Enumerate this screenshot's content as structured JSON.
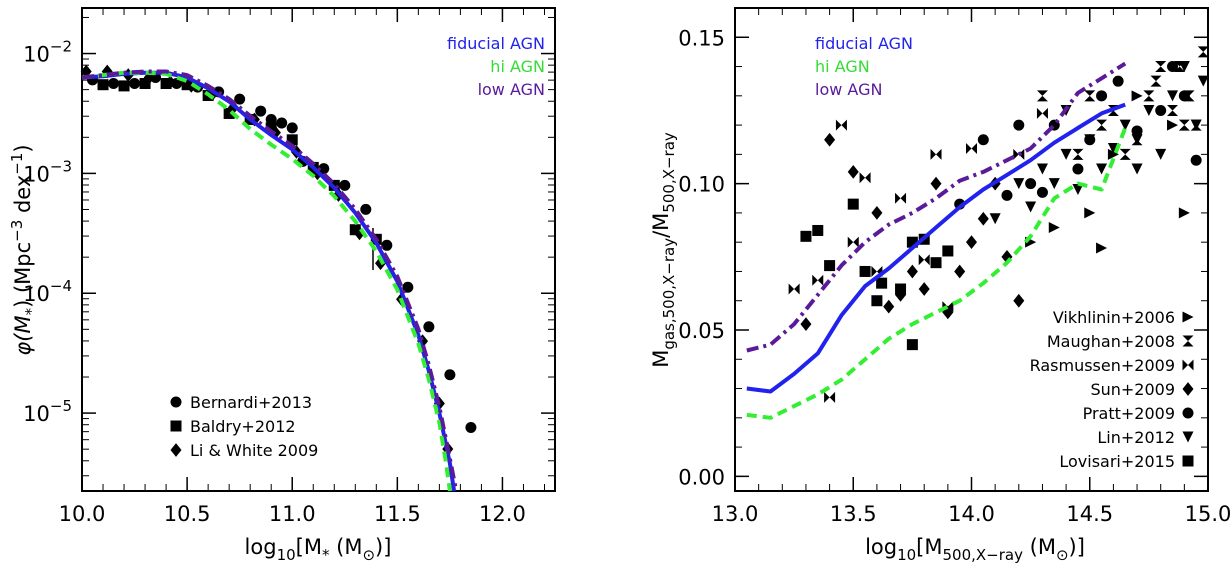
{
  "chart_data": [
    {
      "type": "scatter",
      "id": "left",
      "xlabel": {
        "pre": "log",
        "sub": "10",
        "mid": "[M",
        "sub2": "*",
        "post": " (M",
        "sym": "⊙",
        "end": ")]"
      },
      "ylabel": {
        "pre": "φ(M",
        "sub": "*",
        "mid": ")  (Mpc",
        "sup": "−3",
        "mid2": " dex",
        "sup2": "−1",
        "end": ")"
      },
      "xlim": [
        10.0,
        12.25
      ],
      "ylim_log10": [
        -5.65,
        -1.62
      ],
      "yscale": "log",
      "xticks": [
        "10.0",
        "10.5",
        "11.0",
        "11.5",
        "12.0"
      ],
      "xtick_values": [
        10.0,
        10.5,
        11.0,
        11.5,
        12.0
      ],
      "yticks": [
        {
          "exp": -2,
          "base": "10",
          "sup": "−2"
        },
        {
          "exp": -3,
          "base": "10",
          "sup": "−3"
        },
        {
          "exp": -4,
          "base": "10",
          "sup": "−4"
        },
        {
          "exp": -5,
          "base": "10",
          "sup": "−5"
        }
      ],
      "models": [
        {
          "name": "fiducial AGN",
          "color": "#2222ee",
          "style": "solid",
          "x": [
            10.0,
            10.1,
            10.2,
            10.3,
            10.4,
            10.5,
            10.6,
            10.7,
            10.8,
            10.9,
            11.0,
            11.1,
            11.2,
            11.3,
            11.4,
            11.5,
            11.6,
            11.65,
            11.7,
            11.75,
            11.77
          ],
          "logy": [
            -2.2,
            -2.19,
            -2.17,
            -2.16,
            -2.16,
            -2.2,
            -2.29,
            -2.4,
            -2.55,
            -2.68,
            -2.8,
            -2.95,
            -3.12,
            -3.33,
            -3.58,
            -3.9,
            -4.35,
            -4.65,
            -5.0,
            -5.42,
            -5.65
          ]
        },
        {
          "name": "hi AGN",
          "color": "#33ee33",
          "style": "dashed",
          "x": [
            10.0,
            10.1,
            10.2,
            10.3,
            10.4,
            10.5,
            10.6,
            10.7,
            10.8,
            10.9,
            11.0,
            11.1,
            11.2,
            11.3,
            11.4,
            11.5,
            11.6,
            11.65,
            11.7,
            11.73,
            11.75
          ],
          "logy": [
            -2.2,
            -2.18,
            -2.16,
            -2.16,
            -2.17,
            -2.23,
            -2.34,
            -2.47,
            -2.63,
            -2.76,
            -2.88,
            -3.02,
            -3.19,
            -3.4,
            -3.65,
            -3.97,
            -4.42,
            -4.72,
            -5.08,
            -5.4,
            -5.65
          ]
        },
        {
          "name": "low AGN",
          "color": "#5a1a9a",
          "style": "dashdot",
          "x": [
            10.0,
            10.1,
            10.2,
            10.3,
            10.4,
            10.5,
            10.6,
            10.7,
            10.8,
            10.9,
            11.0,
            11.1,
            11.2,
            11.3,
            11.4,
            11.5,
            11.6,
            11.65,
            11.7,
            11.75,
            11.78
          ],
          "logy": [
            -2.2,
            -2.18,
            -2.16,
            -2.15,
            -2.15,
            -2.18,
            -2.27,
            -2.38,
            -2.52,
            -2.65,
            -2.77,
            -2.92,
            -3.09,
            -3.3,
            -3.55,
            -3.86,
            -4.3,
            -4.6,
            -4.95,
            -5.38,
            -5.65
          ]
        }
      ],
      "observations": [
        {
          "name": "Bernardi+2013",
          "marker": "circle",
          "x": [
            10.05,
            10.15,
            10.25,
            10.35,
            10.45,
            10.55,
            10.65,
            10.75,
            10.85,
            10.9,
            10.95,
            11.0,
            11.05,
            11.15,
            11.25,
            11.35,
            11.45,
            11.55,
            11.65,
            11.75,
            11.85
          ],
          "logy": [
            -2.22,
            -2.25,
            -2.25,
            -2.2,
            -2.25,
            -2.28,
            -2.32,
            -2.38,
            -2.48,
            -2.55,
            -2.58,
            -2.62,
            -2.9,
            -2.96,
            -3.1,
            -3.3,
            -3.6,
            -3.95,
            -4.28,
            -4.68,
            -5.12
          ]
        },
        {
          "name": "Baldry+2012",
          "marker": "square",
          "x": [
            10.1,
            10.2,
            10.3,
            10.4,
            10.5,
            10.6,
            10.7,
            10.8,
            10.9,
            11.0,
            11.1,
            11.2,
            11.3,
            11.4
          ],
          "logy": [
            -2.26,
            -2.27,
            -2.25,
            -2.25,
            -2.26,
            -2.35,
            -2.5,
            -2.55,
            -2.62,
            -2.72,
            -2.95,
            -3.1,
            -3.47,
            -3.55
          ]
        },
        {
          "name": "Li & White 2009",
          "marker": "diamond",
          "x": [
            10.02,
            10.12,
            10.22,
            10.32,
            10.42,
            10.52,
            10.62,
            10.72,
            10.82,
            10.92,
            11.02,
            11.12,
            11.22,
            11.32,
            11.42,
            11.52,
            11.62,
            11.7,
            11.74
          ],
          "logy": [
            -2.15,
            -2.15,
            -2.18,
            -2.2,
            -2.24,
            -2.27,
            -2.34,
            -2.45,
            -2.55,
            -2.66,
            -2.82,
            -3.0,
            -3.18,
            -3.5,
            -3.75,
            -4.05,
            -4.4,
            -4.92,
            -5.3
          ]
        }
      ],
      "legend_position": "bottom-left",
      "model_legend_position": "top-right"
    },
    {
      "type": "scatter",
      "id": "right",
      "xlabel": {
        "pre": "log",
        "sub": "10",
        "mid": "[M",
        "sub2": "500,X−ray",
        "post": " (M",
        "sym": "⊙",
        "end": ")]"
      },
      "ylabel": {
        "pre": "M",
        "sub": "gas,500,X−ray",
        "mid": "/M",
        "sub2": "500,X−ray"
      },
      "xlim": [
        13.0,
        15.0
      ],
      "ylim": [
        -0.005,
        0.16
      ],
      "xticks": [
        "13.0",
        "13.5",
        "14.0",
        "14.5",
        "15.0"
      ],
      "xtick_values": [
        13.0,
        13.5,
        14.0,
        14.5,
        15.0
      ],
      "yticks": [
        "0.00",
        "0.05",
        "0.10",
        "0.15"
      ],
      "ytick_values": [
        0.0,
        0.05,
        0.1,
        0.15
      ],
      "models": [
        {
          "name": "fiducial AGN",
          "color": "#2222ee",
          "style": "solid",
          "x": [
            13.05,
            13.15,
            13.25,
            13.35,
            13.45,
            13.55,
            13.65,
            13.75,
            13.85,
            13.95,
            14.05,
            14.15,
            14.25,
            14.35,
            14.45,
            14.55,
            14.65
          ],
          "y": [
            0.03,
            0.029,
            0.035,
            0.042,
            0.055,
            0.065,
            0.071,
            0.078,
            0.085,
            0.092,
            0.098,
            0.103,
            0.108,
            0.114,
            0.119,
            0.124,
            0.127
          ]
        },
        {
          "name": "hi AGN",
          "color": "#33ee33",
          "style": "dashed",
          "x": [
            13.05,
            13.15,
            13.25,
            13.35,
            13.45,
            13.55,
            13.65,
            13.75,
            13.85,
            13.95,
            14.05,
            14.15,
            14.25,
            14.35,
            14.45,
            14.55,
            14.65
          ],
          "y": [
            0.021,
            0.02,
            0.024,
            0.028,
            0.033,
            0.04,
            0.047,
            0.052,
            0.056,
            0.06,
            0.066,
            0.073,
            0.082,
            0.095,
            0.1,
            0.098,
            0.119
          ]
        },
        {
          "name": "low AGN",
          "color": "#5a1a9a",
          "style": "dashdot",
          "x": [
            13.05,
            13.15,
            13.25,
            13.35,
            13.45,
            13.55,
            13.65,
            13.75,
            13.85,
            13.95,
            14.05,
            14.15,
            14.25,
            14.35,
            14.45,
            14.55,
            14.65
          ],
          "y": [
            0.043,
            0.045,
            0.052,
            0.062,
            0.072,
            0.08,
            0.086,
            0.09,
            0.095,
            0.101,
            0.104,
            0.108,
            0.112,
            0.12,
            0.131,
            0.136,
            0.141
          ]
        }
      ],
      "observations": [
        {
          "name": "Vikhlinin+2006",
          "marker": "triangle-right",
          "x": [
            14.25,
            14.35,
            14.5,
            14.55,
            14.6,
            14.7,
            14.85,
            14.9
          ],
          "y": [
            0.08,
            0.085,
            0.09,
            0.078,
            0.11,
            0.13,
            0.12,
            0.09
          ]
        },
        {
          "name": "Maughan+2008",
          "marker": "hourglass",
          "x": [
            14.3,
            14.45,
            14.55,
            14.6,
            14.7,
            14.75,
            14.8,
            14.85,
            14.88,
            14.92,
            14.95,
            14.98,
            14.5,
            14.65,
            14.78,
            14.9
          ],
          "y": [
            0.13,
            0.11,
            0.12,
            0.125,
            0.115,
            0.13,
            0.14,
            0.125,
            0.14,
            0.13,
            0.12,
            0.145,
            0.13,
            0.11,
            0.135,
            0.12
          ]
        },
        {
          "name": "Rasmussen+2009",
          "marker": "bowtie",
          "x": [
            13.25,
            13.35,
            13.45,
            13.5,
            13.55,
            13.6,
            13.7,
            13.8,
            13.85,
            13.9,
            14.0,
            14.2,
            14.3,
            13.4
          ],
          "y": [
            0.064,
            0.067,
            0.12,
            0.08,
            0.102,
            0.07,
            0.095,
            0.074,
            0.11,
            0.058,
            0.112,
            0.11,
            0.124,
            0.027
          ]
        },
        {
          "name": "Sun+2009",
          "marker": "diamond",
          "x": [
            13.3,
            13.4,
            13.5,
            13.6,
            13.7,
            13.75,
            13.85,
            13.9,
            13.95,
            14.0,
            14.05,
            14.1,
            14.15,
            14.2,
            13.8,
            13.65
          ],
          "y": [
            0.052,
            0.115,
            0.104,
            0.09,
            0.062,
            0.07,
            0.1,
            0.056,
            0.07,
            0.08,
            0.088,
            0.1,
            0.075,
            0.06,
            0.064,
            0.058
          ]
        },
        {
          "name": "Pratt+2009",
          "marker": "circle",
          "x": [
            13.95,
            14.05,
            14.15,
            14.2,
            14.3,
            14.35,
            14.45,
            14.5,
            14.55,
            14.62,
            14.7,
            14.8,
            14.85,
            14.9,
            14.95,
            14.25
          ],
          "y": [
            0.093,
            0.115,
            0.096,
            0.12,
            0.097,
            0.12,
            0.105,
            0.115,
            0.13,
            0.135,
            0.118,
            0.125,
            0.14,
            0.13,
            0.108,
            0.1
          ]
        },
        {
          "name": "Lin+2012",
          "marker": "triangle-down",
          "x": [
            14.1,
            14.2,
            14.25,
            14.3,
            14.35,
            14.4,
            14.45,
            14.5,
            14.55,
            14.6,
            14.65,
            14.7,
            14.75,
            14.8,
            14.85,
            14.9,
            14.95,
            14.98,
            14.4,
            14.7
          ],
          "y": [
            0.088,
            0.1,
            0.092,
            0.105,
            0.1,
            0.11,
            0.098,
            0.115,
            0.105,
            0.112,
            0.12,
            0.115,
            0.125,
            0.11,
            0.13,
            0.14,
            0.12,
            0.135,
            0.125,
            0.105
          ]
        },
        {
          "name": "Lovisari+2015",
          "marker": "square",
          "x": [
            13.3,
            13.35,
            13.4,
            13.5,
            13.55,
            13.6,
            13.7,
            13.75,
            13.8,
            13.85,
            13.9,
            13.75,
            13.62
          ],
          "y": [
            0.082,
            0.084,
            0.072,
            0.093,
            0.07,
            0.06,
            0.064,
            0.08,
            0.081,
            0.073,
            0.077,
            0.045,
            0.066
          ]
        }
      ],
      "legend_position": "bottom-right",
      "model_legend_position": "top-left"
    }
  ],
  "colors": {
    "fiducial": "#2222ee",
    "hi": "#33ee33",
    "low": "#5a1a9a",
    "axes": "#000000"
  }
}
